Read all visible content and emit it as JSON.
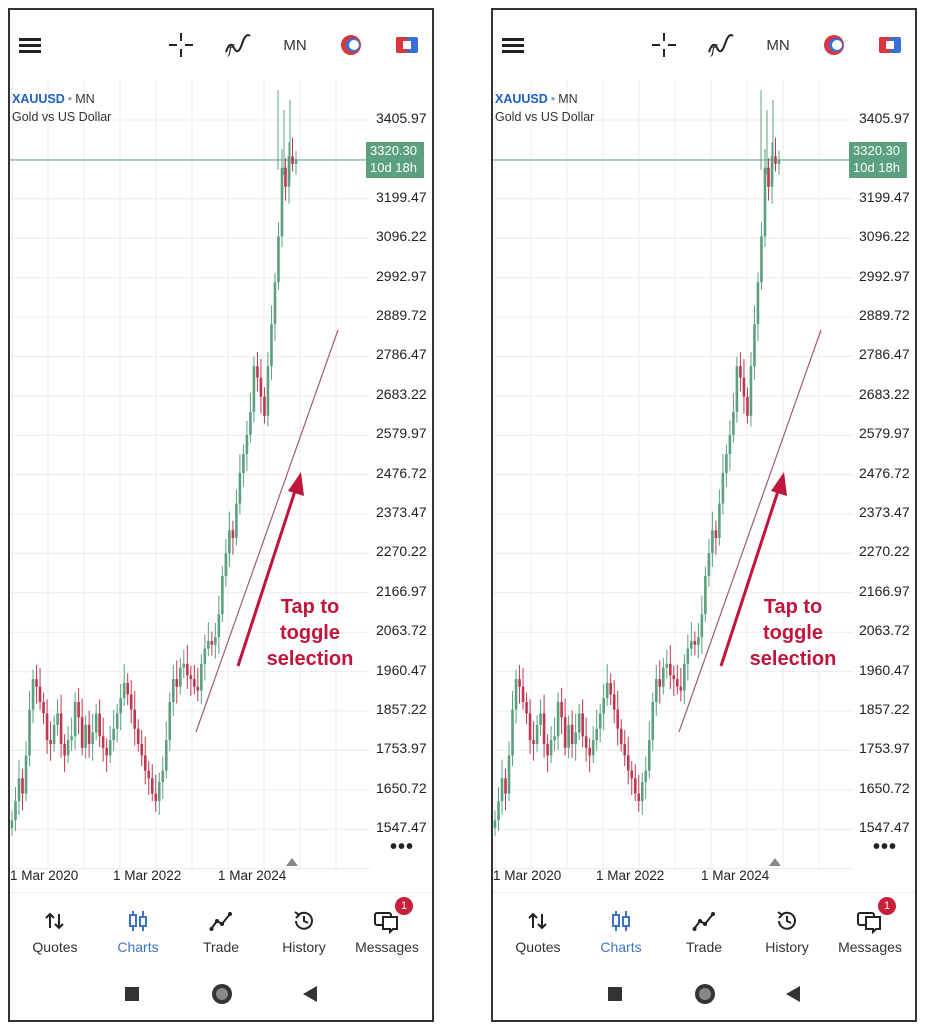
{
  "screens": [
    {
      "toolbar": {
        "timeframe": "MN"
      },
      "chart": {
        "symbol": "XAUUSD",
        "timeframe": "MN",
        "description": "Gold vs US Dollar",
        "price_levels": [
          "3405.97",
          "3199.47",
          "3096.22",
          "2992.97",
          "2889.72",
          "2786.47",
          "2683.22",
          "2579.97",
          "2476.72",
          "2373.47",
          "2270.22",
          "2166.97",
          "2063.72",
          "1960.47",
          "1857.22",
          "1753.97",
          "1650.72",
          "1547.47"
        ],
        "current_price": "3320.30",
        "time_to_close": "10d 18h",
        "dates": [
          "1 Mar 2020",
          "1 Mar 2022",
          "1 Mar 2024"
        ],
        "more_label": "•••"
      },
      "annotation": {
        "line1": "Tap to",
        "line2": "toggle",
        "line3": "selection"
      },
      "tabs": [
        {
          "label": "Quotes",
          "icon": "quotes-icon"
        },
        {
          "label": "Charts",
          "icon": "charts-icon",
          "active": true
        },
        {
          "label": "Trade",
          "icon": "trade-icon"
        },
        {
          "label": "History",
          "icon": "history-icon"
        },
        {
          "label": "Messages",
          "icon": "messages-icon",
          "badge": "1"
        }
      ]
    },
    {
      "toolbar": {
        "timeframe": "MN"
      },
      "chart": {
        "symbol": "XAUUSD",
        "timeframe": "MN",
        "description": "Gold vs US Dollar",
        "price_levels": [
          "3405.97",
          "3199.47",
          "3096.22",
          "2992.97",
          "2889.72",
          "2786.47",
          "2683.22",
          "2579.97",
          "2476.72",
          "2373.47",
          "2270.22",
          "2166.97",
          "2063.72",
          "1960.47",
          "1857.22",
          "1753.97",
          "1650.72",
          "1547.47"
        ],
        "current_price": "3320.30",
        "time_to_close": "10d 18h",
        "dates": [
          "1 Mar 2020",
          "1 Mar 2022",
          "1 Mar 2024"
        ],
        "more_label": "•••"
      },
      "annotation": {
        "line1": "Tap to",
        "line2": "toggle",
        "line3": "selection"
      },
      "tabs": [
        {
          "label": "Quotes",
          "icon": "quotes-icon"
        },
        {
          "label": "Charts",
          "icon": "charts-icon",
          "active": true
        },
        {
          "label": "Trade",
          "icon": "trade-icon"
        },
        {
          "label": "History",
          "icon": "history-icon"
        },
        {
          "label": "Messages",
          "icon": "messages-icon",
          "badge": "1"
        }
      ]
    }
  ],
  "colors": {
    "bull": "#5ba07f",
    "bear": "#c0374f",
    "accent": "#3d74c6",
    "annotation": "#c1153b"
  }
}
